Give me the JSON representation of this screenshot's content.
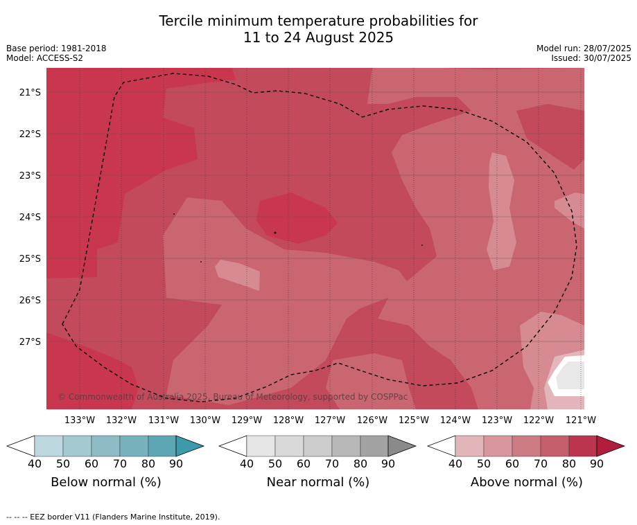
{
  "title_line1": "Tercile minimum temperature probabilities for",
  "title_line2": "11 to 24 August 2025",
  "meta_left": [
    "Base period: 1981-2018",
    "Model: ACCESS-S2"
  ],
  "meta_right": [
    "Model run: 28/07/2025",
    "Issued: 30/07/2025"
  ],
  "map": {
    "lat_labels": [
      "21°S",
      "22°S",
      "23°S",
      "24°S",
      "25°S",
      "26°S",
      "27°S"
    ],
    "lon_labels": [
      "133°W",
      "132°W",
      "131°W",
      "130°W",
      "129°W",
      "128°W",
      "127°W",
      "126°W",
      "125°W",
      "124°W",
      "123°W",
      "122°W",
      "121°W"
    ],
    "copyright": "© Commonwealth of Australia 2025, Bureau of Meteorology, supported by COSPPac",
    "colors": {
      "above_80": "#c9374f",
      "above_70": "#c24a5a",
      "above_60": "#c9666f",
      "above_50": "#d68a91",
      "above_40": "#e2b6bb",
      "near_40": "#e8e8e8",
      "land_white": "#ffffff"
    }
  },
  "colorbars": [
    {
      "title": "Below normal (%)",
      "ticks": [
        "40",
        "50",
        "60",
        "70",
        "80",
        "90"
      ],
      "colors": [
        "#bdd8de",
        "#a5c9d0",
        "#8ebcc6",
        "#77b1bc",
        "#5da6b3",
        "#3d9aab"
      ]
    },
    {
      "title": "Near normal (%)",
      "ticks": [
        "40",
        "50",
        "60",
        "70",
        "80",
        "90"
      ],
      "colors": [
        "#e6e6e6",
        "#d9d9d9",
        "#cccccc",
        "#b8b8b8",
        "#a3a3a3",
        "#8a8a8a"
      ]
    },
    {
      "title": "Above normal (%)",
      "ticks": [
        "40",
        "50",
        "60",
        "70",
        "80",
        "90"
      ],
      "colors": [
        "#e3b6bc",
        "#d9969f",
        "#cd7b83",
        "#c45e6b",
        "#bb3550",
        "#b11e3c"
      ]
    }
  ],
  "footer": "--  --  -- EEZ border V11 (Flanders Marine Institute, 2019)."
}
